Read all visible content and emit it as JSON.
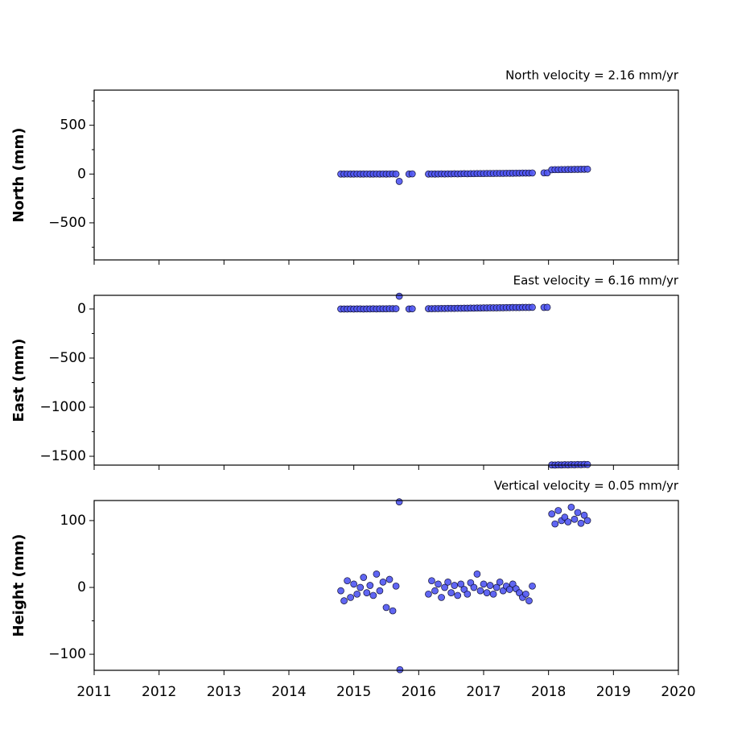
{
  "chart_data": [
    {
      "type": "scatter",
      "title": "North velocity = 2.16 mm/yr",
      "y_label": "North (mm)",
      "color": "#4f55f2",
      "xlim": [
        2011,
        2020
      ],
      "xticks": [
        2011,
        2012,
        2013,
        2014,
        2015,
        2016,
        2017,
        2018,
        2019,
        2020
      ],
      "xtick_labels": false,
      "ylim": [
        -880,
        860
      ],
      "yticks": [
        {
          "value": -500,
          "label": "−500"
        },
        0,
        500
      ],
      "yticks_minor": [
        -750,
        -250,
        250,
        750
      ],
      "x": [
        2014.8,
        2014.85,
        2014.9,
        2014.95,
        2015,
        2015.05,
        2015.1,
        2015.15,
        2015.2,
        2015.25,
        2015.3,
        2015.35,
        2015.4,
        2015.45,
        2015.5,
        2015.55,
        2015.6,
        2015.65,
        2015.7,
        2015.85,
        2015.9,
        2016.15,
        2016.2,
        2016.25,
        2016.3,
        2016.35,
        2016.4,
        2016.45,
        2016.5,
        2016.55,
        2016.6,
        2016.65,
        2016.7,
        2016.75,
        2016.8,
        2016.85,
        2016.9,
        2016.95,
        2017,
        2017.05,
        2017.1,
        2017.15,
        2017.2,
        2017.25,
        2017.3,
        2017.35,
        2017.4,
        2017.45,
        2017.5,
        2017.55,
        2017.6,
        2017.65,
        2017.7,
        2017.75,
        2017.93,
        2017.98,
        2018.05,
        2018.1,
        2018.15,
        2018.2,
        2018.25,
        2018.3,
        2018.35,
        2018.4,
        2018.45,
        2018.5,
        2018.55,
        2018.6
      ],
      "values": [
        0,
        0,
        1,
        0,
        0,
        1,
        0,
        0,
        1,
        0,
        0,
        1,
        0,
        1,
        0,
        1,
        2,
        0,
        -75,
        0,
        2,
        0,
        1,
        0,
        1,
        2,
        1,
        2,
        2,
        3,
        2,
        3,
        4,
        3,
        4,
        4,
        5,
        5,
        5,
        6,
        6,
        6,
        7,
        7,
        7,
        8,
        8,
        8,
        9,
        9,
        10,
        10,
        10,
        11,
        12,
        12,
        44,
        45,
        45,
        46,
        46,
        47,
        47,
        48,
        48,
        49,
        49,
        50
      ]
    },
    {
      "type": "scatter",
      "title": "East velocity = 6.16 mm/yr",
      "y_label": "East (mm)",
      "color": "#4f55f2",
      "xlim": [
        2011,
        2020
      ],
      "xticks": [
        2011,
        2012,
        2013,
        2014,
        2015,
        2016,
        2017,
        2018,
        2019,
        2020
      ],
      "xtick_labels": false,
      "ylim": [
        -1590,
        139
      ],
      "yticks": [
        {
          "value": -1500,
          "label": "−1500"
        },
        {
          "value": -1000,
          "label": "−1000"
        },
        {
          "value": -500,
          "label": "−500"
        },
        0
      ],
      "yticks_minor": [
        -1250,
        -750,
        -250
      ],
      "x": [
        2014.8,
        2014.85,
        2014.9,
        2014.95,
        2015,
        2015.05,
        2015.1,
        2015.15,
        2015.2,
        2015.25,
        2015.3,
        2015.35,
        2015.4,
        2015.45,
        2015.5,
        2015.55,
        2015.6,
        2015.65,
        2015.7,
        2015.85,
        2015.9,
        2016.15,
        2016.2,
        2016.25,
        2016.3,
        2016.35,
        2016.4,
        2016.45,
        2016.5,
        2016.55,
        2016.6,
        2016.65,
        2016.7,
        2016.75,
        2016.8,
        2016.85,
        2016.9,
        2016.95,
        2017,
        2017.05,
        2017.1,
        2017.15,
        2017.2,
        2017.25,
        2017.3,
        2017.35,
        2017.4,
        2017.45,
        2017.5,
        2017.55,
        2017.6,
        2017.65,
        2017.7,
        2017.75,
        2017.93,
        2017.98,
        2018.05,
        2018.1,
        2018.15,
        2018.2,
        2018.25,
        2018.3,
        2018.35,
        2018.4,
        2018.45,
        2018.5,
        2018.55,
        2018.6
      ],
      "values": [
        0,
        0,
        0,
        1,
        0,
        1,
        1,
        0,
        1,
        1,
        2,
        1,
        2,
        2,
        2,
        3,
        3,
        3,
        130,
        0,
        2,
        3,
        3,
        4,
        4,
        5,
        5,
        6,
        6,
        6,
        7,
        7,
        8,
        8,
        9,
        9,
        10,
        10,
        11,
        11,
        12,
        12,
        12,
        13,
        13,
        14,
        14,
        15,
        15,
        15,
        16,
        16,
        16,
        17,
        16,
        17,
        -1588,
        -1589,
        -1587,
        -1588,
        -1586,
        -1587,
        -1585,
        -1586,
        -1584,
        -1585,
        -1583,
        -1584
      ]
    },
    {
      "type": "scatter",
      "title": "Vertical velocity = 0.05 mm/yr",
      "y_label": "Height (mm)",
      "color": "#4f55f2",
      "xlim": [
        2011,
        2020
      ],
      "xticks": [
        2011,
        2012,
        2013,
        2014,
        2015,
        2016,
        2017,
        2018,
        2019,
        2020
      ],
      "xtick_labels": true,
      "ylim": [
        -124,
        130
      ],
      "yticks": [
        {
          "value": -100,
          "label": "−100"
        },
        0,
        100
      ],
      "yticks_minor": [
        -50,
        50
      ],
      "x": [
        2014.8,
        2014.85,
        2014.9,
        2014.95,
        2015,
        2015.05,
        2015.1,
        2015.15,
        2015.2,
        2015.25,
        2015.3,
        2015.35,
        2015.4,
        2015.45,
        2015.5,
        2015.55,
        2015.6,
        2015.65,
        2015.7,
        2015.71,
        2016.15,
        2016.2,
        2016.25,
        2016.3,
        2016.35,
        2016.4,
        2016.45,
        2016.5,
        2016.55,
        2016.6,
        2016.65,
        2016.7,
        2016.75,
        2016.8,
        2016.85,
        2016.9,
        2016.95,
        2017,
        2017.05,
        2017.1,
        2017.15,
        2017.2,
        2017.25,
        2017.3,
        2017.35,
        2017.4,
        2017.45,
        2017.5,
        2017.55,
        2017.6,
        2017.65,
        2017.7,
        2017.75,
        2018.05,
        2018.1,
        2018.15,
        2018.2,
        2018.25,
        2018.3,
        2018.35,
        2018.4,
        2018.45,
        2018.5,
        2018.55,
        2018.6
      ],
      "values": [
        -5,
        -20,
        10,
        -15,
        5,
        -10,
        0,
        15,
        -8,
        3,
        -12,
        20,
        -5,
        8,
        -30,
        12,
        -35,
        2,
        128,
        -123,
        -10,
        10,
        -5,
        5,
        -15,
        0,
        8,
        -8,
        3,
        -12,
        5,
        -3,
        -10,
        7,
        0,
        20,
        -5,
        5,
        -8,
        3,
        -10,
        0,
        8,
        -5,
        2,
        -3,
        5,
        -2,
        -8,
        -15,
        -10,
        -20,
        2,
        110,
        95,
        115,
        100,
        105,
        98,
        120,
        102,
        112,
        96,
        108,
        100
      ]
    }
  ]
}
